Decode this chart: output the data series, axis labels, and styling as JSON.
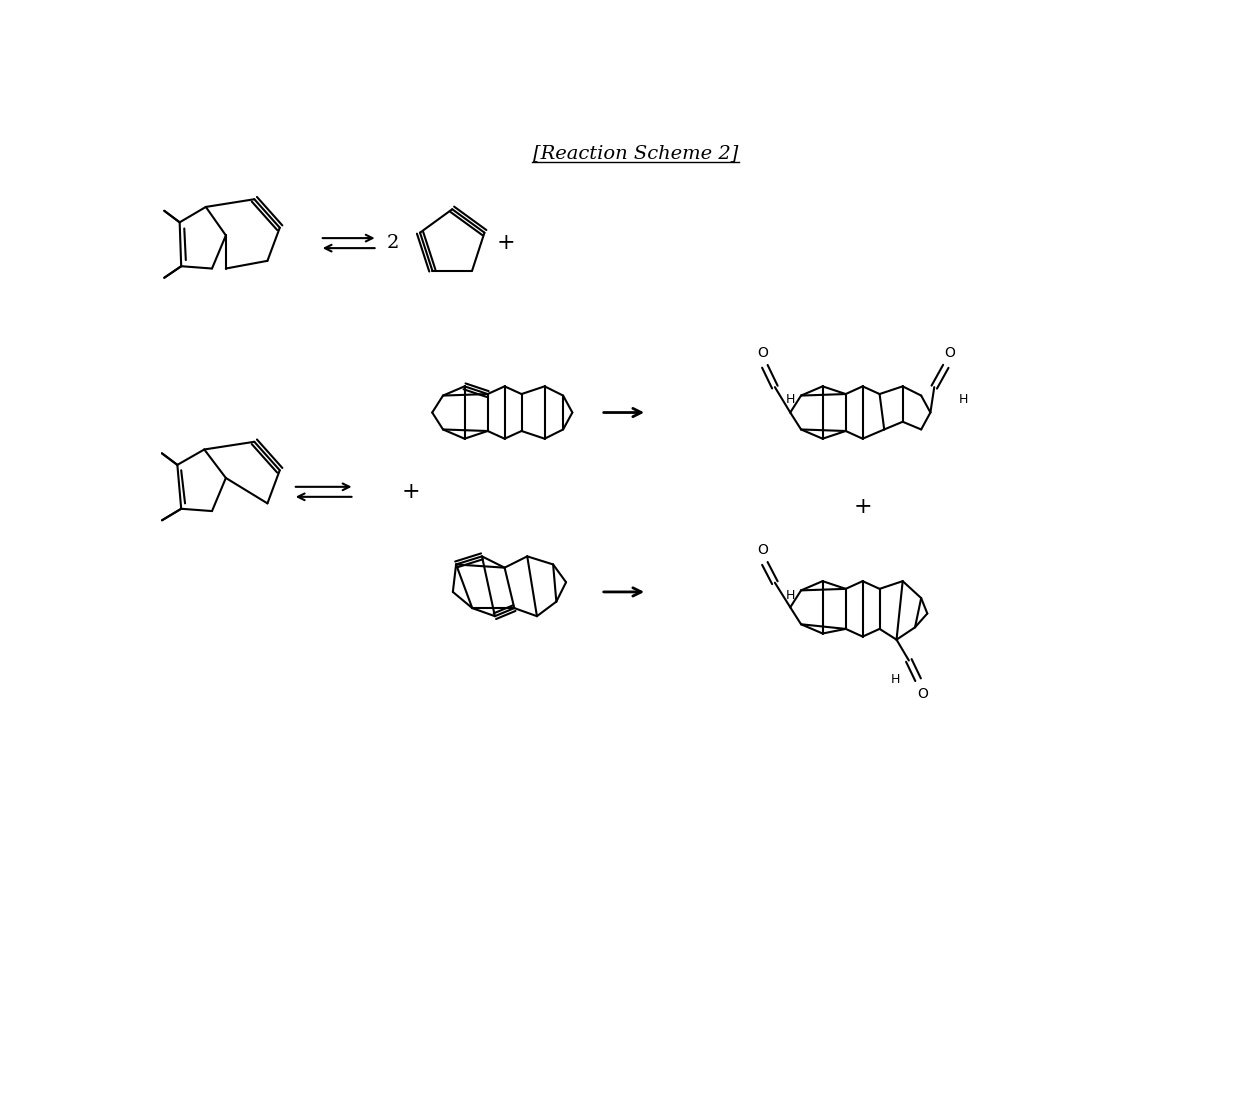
{
  "title": "[Reaction Scheme 2]",
  "title_fontsize": 14,
  "background_color": "#ffffff",
  "line_color": "#000000",
  "line_width": 1.5,
  "arrow_color": "#000000",
  "text_color": "#000000",
  "fig_width": 12.4,
  "fig_height": 11.02,
  "dpi": 100,
  "label_2": "2",
  "label_plus1": "+",
  "label_plus2": "+",
  "label_plus3": "+",
  "label_minus": "+",
  "label_O": "O",
  "label_H": "H"
}
